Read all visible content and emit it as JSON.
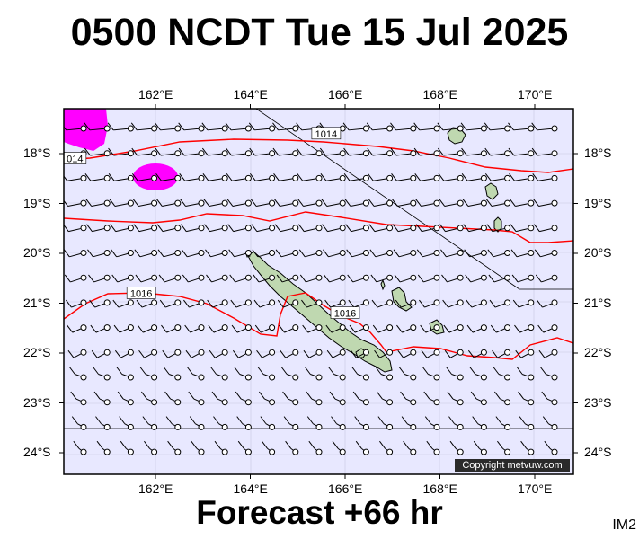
{
  "header": {
    "title": "0500 NCDT Tue 15 Jul 2025"
  },
  "footer": {
    "forecast": "Forecast +66 hr",
    "tag": "IM2",
    "copyright": "Copyright metvuw.com"
  },
  "map": {
    "lon_labels": [
      "162°E",
      "164°E",
      "166°E",
      "168°E",
      "170°E"
    ],
    "lon_values": [
      162,
      164,
      166,
      168,
      170
    ],
    "lat_labels": [
      "18°S",
      "19°S",
      "20°S",
      "21°S",
      "22°S",
      "23°S",
      "24°S"
    ],
    "lat_values": [
      -18,
      -19,
      -20,
      -21,
      -22,
      -23,
      -24
    ],
    "isobar_labels": [
      {
        "text": "1014",
        "lon": 165.6,
        "lat": -17.6
      },
      {
        "text": "014",
        "lon": 160.3,
        "lat": -18.1
      },
      {
        "text": "1016",
        "lon": 161.7,
        "lat": -20.8
      },
      {
        "text": "1016",
        "lon": 166.0,
        "lat": -21.2
      }
    ],
    "colors": {
      "ocean": "#e8e8ff",
      "land": "#bfd8b0",
      "isobar": "#ff0000",
      "rain": "#ff00ff"
    }
  }
}
